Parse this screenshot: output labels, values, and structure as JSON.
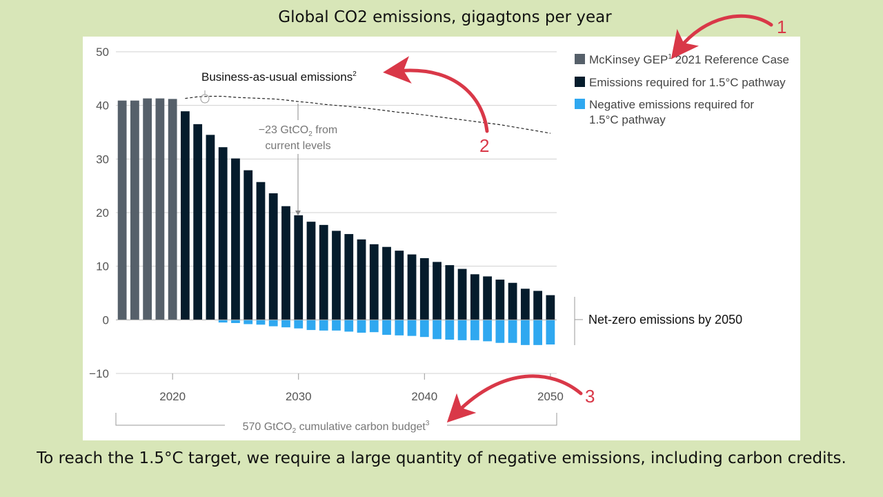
{
  "page": {
    "title": "Global CO2 emissions, gigagtons per year",
    "caption": "To reach the 1.5°C target, we require a large quantity of negative emissions, including carbon credits."
  },
  "colors": {
    "reference": "#56606a",
    "pathway": "#051c2c",
    "negative": "#2fa8f0",
    "arrow": "#d93848",
    "grid": "#d0d0d0"
  },
  "chart_data": {
    "type": "bar",
    "title": "",
    "xlabel": "",
    "ylabel": "",
    "ylim": [
      -10,
      50
    ],
    "yticks": [
      50,
      40,
      30,
      20,
      10,
      0,
      -10
    ],
    "xticks": [
      2020,
      2030,
      2040,
      2050
    ],
    "grid": true,
    "legend_position": "top-right",
    "x": [
      2016,
      2017,
      2018,
      2019,
      2020,
      2021,
      2022,
      2023,
      2024,
      2025,
      2026,
      2027,
      2028,
      2029,
      2030,
      2031,
      2032,
      2033,
      2034,
      2035,
      2036,
      2037,
      2038,
      2039,
      2040,
      2041,
      2042,
      2043,
      2044,
      2045,
      2046,
      2047,
      2048,
      2049,
      2050
    ],
    "legend": {
      "reference_label": "McKinsey GEP",
      "reference_sup": "1",
      "reference_suffix": " 2021 Reference Case",
      "pathway_label": "Emissions required for 1.5°C pathway",
      "negative_label_line1": "Negative emissions required for",
      "negative_label_line2": "1.5°C pathway"
    },
    "series": [
      {
        "name": "McKinsey GEP 2021 Reference Case",
        "type": "bar",
        "x": [
          2016,
          2017,
          2018,
          2019,
          2020
        ],
        "values": [
          40.9,
          40.9,
          41.3,
          41.3,
          41.2
        ]
      },
      {
        "name": "Emissions required for 1.5°C pathway",
        "type": "bar",
        "x": [
          2021,
          2022,
          2023,
          2024,
          2025,
          2026,
          2027,
          2028,
          2029,
          2030,
          2031,
          2032,
          2033,
          2034,
          2035,
          2036,
          2037,
          2038,
          2039,
          2040,
          2041,
          2042,
          2043,
          2044,
          2045,
          2046,
          2047,
          2048,
          2049,
          2050
        ],
        "values": [
          38.9,
          36.5,
          34.5,
          32.2,
          30.1,
          27.9,
          25.7,
          23.6,
          21.2,
          19.5,
          18.3,
          17.7,
          16.6,
          16.0,
          15.0,
          14.1,
          13.6,
          12.9,
          12.2,
          11.5,
          10.8,
          10.2,
          9.5,
          8.5,
          8.1,
          7.5,
          6.9,
          5.8,
          5.4,
          4.6
        ]
      },
      {
        "name": "Negative emissions required for 1.5°C pathway",
        "type": "bar",
        "x": [
          2024,
          2025,
          2026,
          2027,
          2028,
          2029,
          2030,
          2031,
          2032,
          2033,
          2034,
          2035,
          2036,
          2037,
          2038,
          2039,
          2040,
          2041,
          2042,
          2043,
          2044,
          2045,
          2046,
          2047,
          2048,
          2049,
          2050
        ],
        "values": [
          -0.5,
          -0.6,
          -0.8,
          -0.9,
          -1.2,
          -1.4,
          -1.6,
          -1.9,
          -2.0,
          -2.0,
          -2.2,
          -2.4,
          -2.3,
          -2.8,
          -2.9,
          -3.0,
          -3.2,
          -3.6,
          -3.7,
          -3.8,
          -3.8,
          -4.0,
          -4.3,
          -4.3,
          -4.7,
          -4.7,
          -4.6
        ]
      },
      {
        "name": "Business-as-usual emissions",
        "type": "line",
        "x": [
          2021,
          2022,
          2023,
          2024,
          2025,
          2026,
          2027,
          2028,
          2029,
          2030,
          2031,
          2032,
          2033,
          2034,
          2035,
          2036,
          2037,
          2038,
          2039,
          2040,
          2041,
          2042,
          2043,
          2044,
          2045,
          2046,
          2047,
          2048,
          2049,
          2050
        ],
        "values": [
          41.3,
          41.6,
          41.7,
          41.7,
          41.5,
          41.4,
          41.3,
          41.2,
          41.0,
          40.7,
          40.5,
          40.2,
          40.0,
          39.8,
          39.6,
          39.3,
          39.0,
          38.7,
          38.5,
          38.2,
          37.9,
          37.6,
          37.3,
          37.0,
          36.7,
          36.4,
          36.0,
          35.6,
          35.2,
          34.8
        ]
      }
    ],
    "annotations": {
      "bau_label": "Business-as-usual emissions",
      "bau_sup": "2",
      "reduction_line1_pre": "−23 GtCO",
      "reduction_sub": "2",
      "reduction_line1_post": " from",
      "reduction_line2": "current levels",
      "netzero_label": "Net-zero emissions by 2050",
      "budget_pre": "570 GtCO",
      "budget_sub": "2",
      "budget_post": " cumulative carbon budget",
      "budget_sup": "3",
      "marker_1": "1",
      "marker_2": "2",
      "marker_3": "3"
    }
  }
}
